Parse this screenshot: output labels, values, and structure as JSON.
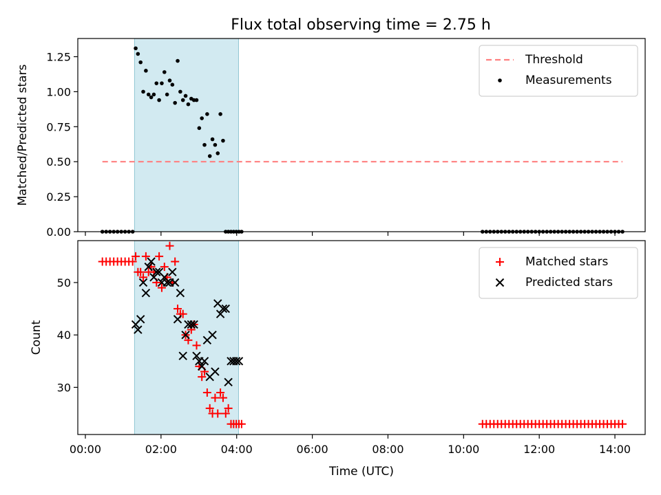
{
  "figure": {
    "title": "Flux total observing time = 2.75 h",
    "shade_color": "#add8e6"
  },
  "chart_data": [
    {
      "type": "scatter",
      "panel": "top",
      "ylabel": "Matched/Predicted stars",
      "xlim": [
        -0.2,
        14.8
      ],
      "ylim": [
        0,
        1.38
      ],
      "yticks": [
        0.0,
        0.25,
        0.5,
        0.75,
        1.0,
        1.25
      ],
      "ytick_labels": [
        "0.00",
        "0.25",
        "0.50",
        "0.75",
        "1.00",
        "1.25"
      ],
      "shade_x": [
        1.3,
        4.05
      ],
      "legend_position": "top-right",
      "series": [
        {
          "name": "Threshold",
          "kind": "dashed-line",
          "color": "#ff7f7f",
          "x": [
            0.45,
            14.2
          ],
          "y": [
            0.5,
            0.5
          ]
        },
        {
          "name": "Measurements",
          "kind": "dot",
          "color": "#000000",
          "x": [
            0.45,
            0.55,
            0.65,
            0.75,
            0.85,
            0.95,
            1.05,
            1.15,
            1.25,
            1.33,
            1.39,
            1.46,
            1.53,
            1.6,
            1.67,
            1.74,
            1.81,
            1.88,
            1.95,
            2.02,
            2.09,
            2.16,
            2.23,
            2.3,
            2.37,
            2.44,
            2.51,
            2.58,
            2.65,
            2.72,
            2.8,
            2.87,
            2.94,
            3.01,
            3.08,
            3.15,
            3.22,
            3.29,
            3.36,
            3.43,
            3.5,
            3.57,
            3.64,
            3.71,
            3.78,
            3.85,
            3.92,
            3.99,
            4.06,
            4.13,
            10.5,
            10.6,
            10.7,
            10.8,
            10.9,
            11.0,
            11.1,
            11.2,
            11.3,
            11.4,
            11.5,
            11.6,
            11.7,
            11.8,
            11.9,
            12.0,
            12.1,
            12.2,
            12.3,
            12.4,
            12.5,
            12.6,
            12.7,
            12.8,
            12.9,
            13.0,
            13.1,
            13.2,
            13.3,
            13.4,
            13.5,
            13.6,
            13.7,
            13.8,
            13.9,
            14.0,
            14.1,
            14.2
          ],
          "y": [
            0,
            0,
            0,
            0,
            0,
            0,
            0,
            0,
            0,
            1.31,
            1.27,
            1.21,
            1.0,
            1.15,
            0.98,
            0.96,
            0.98,
            1.06,
            0.94,
            1.06,
            1.14,
            0.98,
            1.08,
            1.05,
            0.92,
            1.22,
            1.0,
            0.94,
            0.97,
            0.91,
            0.95,
            0.94,
            0.94,
            0.74,
            0.81,
            0.62,
            0.84,
            0.54,
            0.66,
            0.62,
            0.56,
            0.84,
            0.65,
            0,
            0,
            0,
            0,
            0,
            0,
            0,
            0,
            0,
            0,
            0,
            0,
            0,
            0,
            0,
            0,
            0,
            0,
            0,
            0,
            0,
            0,
            0,
            0,
            0,
            0,
            0,
            0,
            0,
            0,
            0,
            0,
            0,
            0,
            0,
            0,
            0,
            0,
            0,
            0,
            0,
            0,
            0,
            0,
            0
          ]
        }
      ]
    },
    {
      "type": "scatter",
      "panel": "bottom",
      "xlabel": "Time (UTC)",
      "ylabel": "Count",
      "xlim": [
        -0.2,
        14.8
      ],
      "ylim": [
        21,
        58
      ],
      "xticks": [
        0,
        2,
        4,
        6,
        8,
        10,
        12,
        14
      ],
      "xtick_labels": [
        "00:00",
        "02:00",
        "04:00",
        "06:00",
        "08:00",
        "10:00",
        "12:00",
        "14:00"
      ],
      "yticks": [
        30,
        40,
        50
      ],
      "ytick_labels": [
        "30",
        "40",
        "50"
      ],
      "shade_x": [
        1.3,
        4.05
      ],
      "legend_position": "top-right",
      "series": [
        {
          "name": "Matched stars",
          "marker": "plus",
          "color": "#ff0000",
          "x": [
            0.45,
            0.55,
            0.65,
            0.75,
            0.85,
            0.95,
            1.05,
            1.15,
            1.25,
            1.33,
            1.39,
            1.46,
            1.53,
            1.6,
            1.67,
            1.74,
            1.81,
            1.88,
            1.95,
            2.02,
            2.09,
            2.16,
            2.23,
            2.3,
            2.37,
            2.44,
            2.51,
            2.58,
            2.65,
            2.72,
            2.8,
            2.87,
            2.94,
            3.01,
            3.08,
            3.15,
            3.22,
            3.29,
            3.36,
            3.43,
            3.5,
            3.57,
            3.64,
            3.71,
            3.78,
            3.85,
            3.92,
            3.99,
            4.06,
            4.13,
            10.5,
            10.6,
            10.7,
            10.8,
            10.9,
            11.0,
            11.1,
            11.2,
            11.3,
            11.4,
            11.5,
            11.6,
            11.7,
            11.8,
            11.9,
            12.0,
            12.1,
            12.2,
            12.3,
            12.4,
            12.5,
            12.6,
            12.7,
            12.8,
            12.9,
            13.0,
            13.1,
            13.2,
            13.3,
            13.4,
            13.5,
            13.6,
            13.7,
            13.8,
            13.9,
            14.0,
            14.1,
            14.2
          ],
          "y": [
            54,
            54,
            54,
            54,
            54,
            54,
            54,
            54,
            54,
            55,
            52,
            52,
            51,
            55,
            52,
            53,
            52,
            50,
            55,
            49,
            53,
            51,
            57,
            50,
            54,
            45,
            44,
            44,
            40,
            39,
            41,
            42,
            38,
            34,
            32,
            33,
            29,
            26,
            25,
            28,
            25,
            29,
            28,
            25,
            26,
            23,
            23,
            23,
            23,
            23,
            23,
            23,
            23,
            23,
            23,
            23,
            23,
            23,
            23,
            23,
            23,
            23,
            23,
            23,
            23,
            23,
            23,
            23,
            23,
            23,
            23,
            23,
            23,
            23,
            23,
            23,
            23,
            23,
            23,
            23,
            23,
            23,
            23,
            23,
            23,
            23,
            23,
            23
          ]
        },
        {
          "name": "Predicted stars",
          "marker": "x",
          "color": "#000000",
          "x": [
            1.33,
            1.39,
            1.46,
            1.53,
            1.6,
            1.67,
            1.74,
            1.81,
            1.88,
            1.95,
            2.02,
            2.09,
            2.16,
            2.23,
            2.3,
            2.37,
            2.44,
            2.51,
            2.58,
            2.65,
            2.72,
            2.8,
            2.87,
            2.94,
            3.01,
            3.08,
            3.15,
            3.22,
            3.29,
            3.36,
            3.43,
            3.5,
            3.57,
            3.64,
            3.71,
            3.78,
            3.85,
            3.92,
            3.99,
            4.06
          ],
          "y": [
            42,
            41,
            43,
            50,
            48,
            53,
            54,
            51,
            52,
            52,
            50,
            51,
            50,
            50,
            52,
            50,
            43,
            48,
            36,
            40,
            42,
            42,
            42,
            36,
            35,
            34,
            35,
            39,
            32,
            40,
            33,
            46,
            44,
            45,
            45,
            31,
            35,
            35,
            35,
            35
          ]
        }
      ]
    }
  ]
}
